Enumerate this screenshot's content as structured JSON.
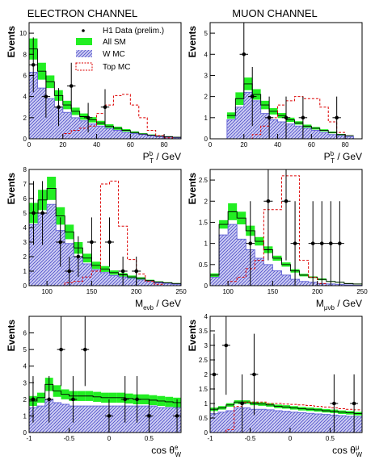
{
  "headers": {
    "left": "ELECTRON CHANNEL",
    "right": "MUON CHANNEL"
  },
  "legend": {
    "data": "H1 Data (prelim.)",
    "allsm": "All SM",
    "wmc": "W MC",
    "topmc": "Top MC"
  },
  "colors": {
    "allsm": "#22ee22",
    "wmc": "#6a6ad8",
    "topmc": "#dd0000",
    "data": "#000000",
    "frame": "#000000"
  },
  "chart_data": [
    {
      "type": "bar",
      "id": "e-pt",
      "ylabel": "Events",
      "xlabel": "P_T^b / GeV",
      "xlim": [
        0,
        90
      ],
      "ylim": [
        0,
        11
      ],
      "xticks": [
        0,
        20,
        40,
        60,
        80
      ],
      "yticks": [
        0,
        2,
        4,
        6,
        8,
        10
      ],
      "bin_width": 5,
      "bin_lo": [
        0,
        5,
        10,
        15,
        20,
        25,
        30,
        35,
        40,
        45,
        50,
        55,
        60,
        65,
        70,
        75,
        80,
        85
      ],
      "w": [
        6.3,
        4.8,
        3.8,
        3.0,
        2.5,
        2.0,
        1.7,
        1.4,
        1.2,
        1.0,
        0.8,
        0.6,
        0.5,
        0.4,
        0.3,
        0.2,
        0.15,
        0.1
      ],
      "sm": [
        8.5,
        6.4,
        5.4,
        4.1,
        3.2,
        2.6,
        2.1,
        1.8,
        1.5,
        1.2,
        1.0,
        0.8,
        0.6,
        0.45,
        0.35,
        0.25,
        0.2,
        0.15
      ],
      "smerr": [
        1.0,
        0.8,
        0.6,
        0.5,
        0.4,
        0.35,
        0.3,
        0.25,
        0.2,
        0.18,
        0.15,
        0.12,
        0.1,
        0.08,
        0.06,
        0.05,
        0.04,
        0.03
      ],
      "top": [
        0,
        0,
        0,
        0,
        0.5,
        0.8,
        1.0,
        1.2,
        2.4,
        3.2,
        4.1,
        4.2,
        3.2,
        2.0,
        0.8,
        0.3,
        0.1,
        0
      ],
      "data": [
        [
          2.5,
          7,
          2.6
        ],
        [
          10,
          4,
          2.0
        ],
        [
          17.5,
          3,
          1.8
        ],
        [
          25,
          5,
          2.2
        ],
        [
          35,
          2,
          1.4
        ],
        [
          45,
          3,
          1.7
        ]
      ]
    },
    {
      "type": "bar",
      "id": "mu-pt",
      "ylabel": "Events",
      "xlabel": "P_T^b / GeV",
      "xlim": [
        0,
        90
      ],
      "ylim": [
        0,
        5.5
      ],
      "xticks": [
        0,
        20,
        40,
        60,
        80
      ],
      "yticks": [
        0,
        1,
        2,
        3,
        4,
        5
      ],
      "bin_width": 5,
      "bin_lo": [
        10,
        15,
        20,
        25,
        30,
        35,
        40,
        45,
        50,
        55,
        60,
        65,
        70,
        75,
        80
      ],
      "w": [
        0.9,
        1.5,
        2.2,
        1.8,
        1.2,
        0.9,
        0.8,
        0.7,
        0.6,
        0.5,
        0.4,
        0.3,
        0.2,
        0.15,
        0.1
      ],
      "sm": [
        1.1,
        1.9,
        2.6,
        2.1,
        1.6,
        1.3,
        1.1,
        0.9,
        0.75,
        0.6,
        0.5,
        0.4,
        0.3,
        0.2,
        0.15
      ],
      "smerr": [
        0.15,
        0.3,
        0.3,
        0.25,
        0.2,
        0.15,
        0.12,
        0.1,
        0.08,
        0.07,
        0.06,
        0.05,
        0.04,
        0.03,
        0.02
      ],
      "top": [
        0,
        0,
        0,
        0.2,
        0.6,
        1.0,
        1.6,
        1.8,
        2.0,
        1.9,
        1.9,
        1.5,
        0.8,
        0.3,
        0
      ],
      "data": [
        [
          20,
          4,
          2.0
        ],
        [
          25,
          2,
          1.4
        ],
        [
          35,
          1,
          1.0
        ],
        [
          45,
          1,
          1.0
        ],
        [
          55,
          1,
          1.0
        ],
        [
          75,
          1,
          1.0
        ]
      ]
    },
    {
      "type": "bar",
      "id": "e-m",
      "ylabel": "Events",
      "xlabel": "M_eνb / GeV",
      "xlim": [
        80,
        250
      ],
      "ylim": [
        0,
        8
      ],
      "xticks": [
        100,
        150,
        200,
        250
      ],
      "yticks": [
        0,
        1,
        2,
        3,
        4,
        5,
        6,
        7,
        8
      ],
      "bin_width": 10,
      "bin_lo": [
        80,
        90,
        100,
        110,
        120,
        130,
        140,
        150,
        160,
        170,
        180,
        190,
        200,
        210,
        220,
        230,
        240
      ],
      "w": [
        4.2,
        5.0,
        5.6,
        3.8,
        2.9,
        2.0,
        1.5,
        1.1,
        0.9,
        0.7,
        0.6,
        0.5,
        0.4,
        0.3,
        0.2,
        0.15,
        0.1
      ],
      "sm": [
        5.0,
        5.9,
        6.7,
        4.8,
        3.7,
        2.6,
        1.9,
        1.4,
        1.15,
        0.9,
        0.75,
        0.6,
        0.5,
        0.35,
        0.25,
        0.2,
        0.15
      ],
      "smerr": [
        0.7,
        0.7,
        0.8,
        0.6,
        0.5,
        0.4,
        0.3,
        0.25,
        0.2,
        0.15,
        0.12,
        0.1,
        0.08,
        0.06,
        0.05,
        0.04,
        0.03
      ],
      "top": [
        0,
        0,
        0,
        0,
        0.2,
        0.3,
        0.6,
        1.0,
        7.0,
        7.2,
        4.1,
        1.8,
        0.8,
        0.3,
        0.1,
        0,
        0
      ],
      "data": [
        [
          85,
          5,
          2.2
        ],
        [
          95,
          5,
          2.2
        ],
        [
          115,
          3,
          1.7
        ],
        [
          125,
          1,
          1.0
        ],
        [
          135,
          2,
          1.4
        ],
        [
          150,
          3,
          1.7
        ],
        [
          170,
          3,
          1.7
        ],
        [
          185,
          1,
          1.0
        ],
        [
          200,
          1,
          1.0
        ]
      ]
    },
    {
      "type": "bar",
      "id": "mu-m",
      "ylabel": "Events",
      "xlabel": "M_μνb / GeV",
      "xlim": [
        80,
        250
      ],
      "ylim": [
        0,
        2.75
      ],
      "xticks": [
        100,
        150,
        200,
        250
      ],
      "yticks": [
        0,
        0.5,
        1,
        1.5,
        2,
        2.5
      ],
      "bin_width": 10,
      "bin_lo": [
        80,
        90,
        100,
        110,
        120,
        130,
        140,
        150,
        160,
        170,
        180,
        190,
        200,
        210,
        220,
        230,
        240
      ],
      "w": [
        0.2,
        1.2,
        1.45,
        1.1,
        0.85,
        0.65,
        0.5,
        0.35,
        0.25,
        0.15,
        0.1,
        0.08,
        0.05,
        0.04,
        0.03,
        0.02,
        0.01
      ],
      "sm": [
        0.25,
        1.45,
        1.75,
        1.6,
        1.3,
        1.05,
        0.85,
        0.65,
        0.5,
        0.35,
        0.25,
        0.2,
        0.15,
        0.1,
        0.08,
        0.05,
        0.04
      ],
      "smerr": [
        0.04,
        0.1,
        0.2,
        0.15,
        0.12,
        0.1,
        0.08,
        0.06,
        0.05,
        0.04,
        0.03,
        0.02,
        0.02,
        0.01,
        0.01,
        0.01,
        0.01
      ],
      "top": [
        0,
        0,
        0.1,
        0.2,
        0.4,
        0.6,
        1.8,
        1.8,
        2.6,
        2.6,
        0.6,
        0.2,
        0.05,
        0,
        0,
        0,
        0
      ],
      "data": [
        [
          125,
          1,
          1.0
        ],
        [
          145,
          2,
          1.4
        ],
        [
          165,
          2,
          1.4
        ],
        [
          175,
          1,
          1.0
        ],
        [
          195,
          1,
          1.0
        ],
        [
          205,
          1,
          1.0
        ],
        [
          215,
          1,
          1.0
        ],
        [
          225,
          1,
          1.0
        ]
      ]
    },
    {
      "type": "bar",
      "id": "e-cos",
      "ylabel": "Events",
      "xlabel": "cos θ_W^e",
      "xlim": [
        -1,
        0.9
      ],
      "ylim": [
        0,
        7
      ],
      "xticks": [
        -1,
        -0.5,
        0,
        0.5
      ],
      "yticks": [
        0,
        1,
        2,
        3,
        4,
        5,
        6
      ],
      "bin_width": 0.1,
      "bin_lo": [
        -1.0,
        -0.9,
        -0.8,
        -0.7,
        -0.6,
        -0.5,
        -0.4,
        -0.3,
        -0.2,
        -0.1,
        0.0,
        0.1,
        0.2,
        0.3,
        0.4,
        0.5,
        0.6,
        0.7,
        0.8
      ],
      "w": [
        1.5,
        1.6,
        2.0,
        1.8,
        1.7,
        1.6,
        1.6,
        1.6,
        1.6,
        1.6,
        1.6,
        1.6,
        1.6,
        1.6,
        1.6,
        1.6,
        1.5,
        1.5,
        1.5
      ],
      "sm": [
        1.9,
        2.1,
        2.9,
        2.5,
        2.3,
        2.2,
        2.2,
        2.2,
        2.15,
        2.1,
        2.1,
        2.1,
        2.05,
        2.0,
        2.0,
        1.95,
        1.9,
        1.85,
        1.8
      ],
      "smerr": [
        0.3,
        0.3,
        0.4,
        0.35,
        0.3,
        0.3,
        0.3,
        0.3,
        0.3,
        0.3,
        0.3,
        0.3,
        0.3,
        0.3,
        0.3,
        0.3,
        0.3,
        0.3,
        0.3
      ],
      "top": [
        0,
        0,
        0,
        0,
        0,
        0,
        0,
        0,
        0,
        0,
        0,
        0,
        0,
        0,
        0,
        0,
        0,
        0,
        0
      ],
      "data": [
        [
          -0.95,
          2,
          1.4
        ],
        [
          -0.75,
          2,
          1.4
        ],
        [
          -0.6,
          5,
          2.2
        ],
        [
          -0.45,
          2,
          1.4
        ],
        [
          -0.3,
          5,
          2.2
        ],
        [
          0.0,
          1,
          1.0
        ],
        [
          0.2,
          2,
          1.4
        ],
        [
          0.35,
          2,
          1.4
        ],
        [
          0.5,
          1,
          1.0
        ],
        [
          0.85,
          1,
          1.0
        ]
      ]
    },
    {
      "type": "bar",
      "id": "mu-cos",
      "ylabel": "Events",
      "xlabel": "cos θ_W^μ",
      "xlim": [
        -1,
        0.9
      ],
      "ylim": [
        0,
        4
      ],
      "xticks": [
        -1,
        -0.5,
        0,
        0.5
      ],
      "yticks": [
        0,
        0.5,
        1,
        1.5,
        2,
        2.5,
        3,
        3.5,
        4
      ],
      "bin_width": 0.1,
      "bin_lo": [
        -1.0,
        -0.9,
        -0.8,
        -0.7,
        -0.6,
        -0.5,
        -0.4,
        -0.3,
        -0.2,
        -0.1,
        0.0,
        0.1,
        0.2,
        0.3,
        0.4,
        0.5,
        0.6,
        0.7,
        0.8
      ],
      "w": [
        0.65,
        0.7,
        0.75,
        0.85,
        0.85,
        0.8,
        0.8,
        0.78,
        0.75,
        0.73,
        0.7,
        0.68,
        0.66,
        0.64,
        0.62,
        0.6,
        0.58,
        0.56,
        0.55
      ],
      "sm": [
        0.8,
        0.85,
        0.95,
        1.05,
        1.05,
        1.0,
        0.98,
        0.95,
        0.9,
        0.88,
        0.85,
        0.82,
        0.8,
        0.78,
        0.75,
        0.73,
        0.7,
        0.68,
        0.65
      ],
      "smerr": [
        0.06,
        0.06,
        0.06,
        0.06,
        0.06,
        0.06,
        0.06,
        0.06,
        0.06,
        0.06,
        0.06,
        0.06,
        0.06,
        0.06,
        0.06,
        0.06,
        0.06,
        0.06,
        0.06
      ],
      "top": [
        0,
        0,
        0.1,
        0.9,
        1.05,
        1.05,
        1.05,
        1.0,
        1.0,
        0.98,
        0.97,
        0.95,
        0.93,
        0.9,
        0.88,
        0.85,
        0.82,
        0.8,
        0.78
      ],
      "data": [
        [
          -0.95,
          2,
          1.4
        ],
        [
          -0.8,
          3,
          1.7
        ],
        [
          -0.6,
          1,
          1.0
        ],
        [
          -0.45,
          2,
          1.4
        ],
        [
          0.55,
          1,
          1.0
        ],
        [
          0.8,
          1,
          1.0
        ]
      ]
    }
  ]
}
